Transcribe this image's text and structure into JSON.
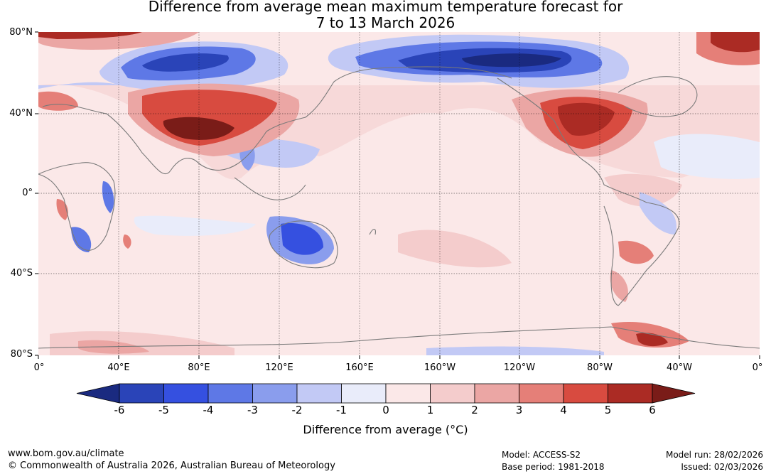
{
  "title_line1": "Difference from average mean maximum temperature forecast for",
  "title_line2": "7 to 13 March 2026",
  "lat_labels": [
    "80°N",
    "40°N",
    "0°",
    "40°S",
    "80°S"
  ],
  "lon_labels": [
    "0°",
    "40°E",
    "80°E",
    "120°E",
    "160°E",
    "160°W",
    "120°W",
    "80°W",
    "40°W",
    "0°"
  ],
  "colorbar": {
    "ticks": [
      "-6",
      "-5",
      "-4",
      "-3",
      "-2",
      "-1",
      "0",
      "1",
      "2",
      "3",
      "4",
      "5",
      "6"
    ],
    "colors": [
      "#1a2a80",
      "#2a44b8",
      "#3550e0",
      "#5e78e6",
      "#8a9ded",
      "#c2c9f5",
      "#e9ecfa",
      "#fbe8e8",
      "#f4cccc",
      "#eba6a4",
      "#e57f78",
      "#d84b40",
      "#ab2b24",
      "#7a1c18"
    ],
    "title": "Difference from average (°C)"
  },
  "footer": {
    "url": "www.bom.gov.au/climate",
    "copyright": "© Commonwealth of Australia 2026, Australian Bureau of Meteorology",
    "model": "Model: ACCESS-S2",
    "base_period": "Base period: 1981-2018",
    "model_run": "Model run: 28/02/2026",
    "issued": "Issued: 02/03/2026"
  }
}
